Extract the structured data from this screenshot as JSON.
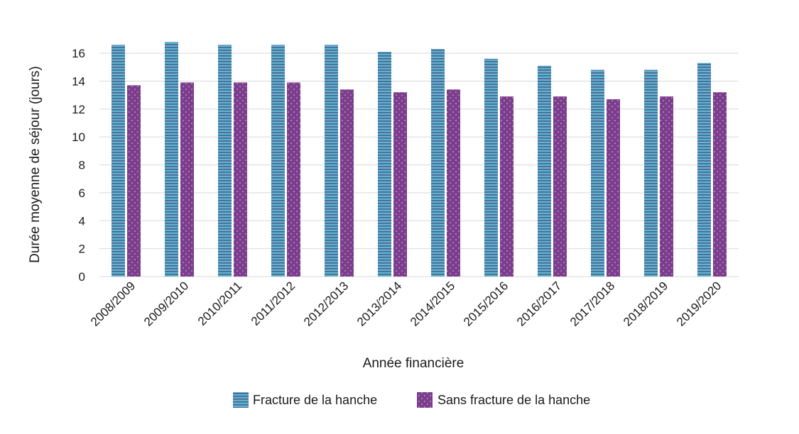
{
  "chart_data": {
    "type": "bar",
    "title": "",
    "xlabel": "Année financière",
    "ylabel": "Durée moyenne de séjour (jours)",
    "ylim": [
      0,
      16
    ],
    "yticks": [
      0,
      2,
      4,
      6,
      8,
      10,
      12,
      14,
      16
    ],
    "grid": true,
    "legend_position": "bottom",
    "categories": [
      "2008/2009",
      "2009/2010",
      "2010/2011",
      "2011/2012",
      "2012/2013",
      "2013/2014",
      "2014/2015",
      "2015/2016",
      "2016/2017",
      "2017/2018",
      "2018/2019",
      "2019/2020"
    ],
    "series": [
      {
        "name": "Fracture de la hanche",
        "color": "#5bb8c8",
        "stripe_color": "#4f5b9a",
        "pattern": "horizontal-stripes",
        "values": [
          16.6,
          16.8,
          16.6,
          16.6,
          16.6,
          16.1,
          16.3,
          15.6,
          15.1,
          14.8,
          14.8,
          15.3
        ]
      },
      {
        "name": "Sans fracture de la hanche",
        "color": "#7b3d8c",
        "dot_color": "#c9a6d4",
        "pattern": "dots",
        "values": [
          13.7,
          13.9,
          13.9,
          13.9,
          13.4,
          13.2,
          13.4,
          12.9,
          12.9,
          12.7,
          12.9,
          13.2
        ]
      }
    ]
  }
}
